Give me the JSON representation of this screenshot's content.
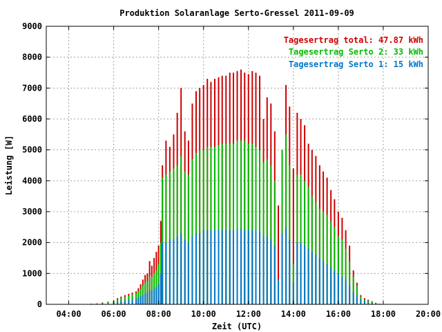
{
  "chart_data": {
    "type": "bar",
    "title": "Produktion Solaranlage Serto-Gressel 2011-09-09",
    "xlabel": "Zeit (UTC)",
    "ylabel": "Leistung [W]",
    "xlim": [
      3.0,
      20.0
    ],
    "ylim": [
      0,
      9000
    ],
    "x_ticks": [
      "04:00",
      "06:00",
      "08:00",
      "10:00",
      "12:00",
      "14:00",
      "16:00",
      "18:00",
      "20:00"
    ],
    "x_tick_hours": [
      4,
      6,
      8,
      10,
      12,
      14,
      16,
      18,
      20
    ],
    "y_ticks": [
      0,
      1000,
      2000,
      3000,
      4000,
      5000,
      6000,
      7000,
      8000,
      9000
    ],
    "grid": true,
    "legend_position": "top-right",
    "series": [
      {
        "name": "Tagesertrag total: 47.87 kWh",
        "color": "#cc0000",
        "points": [
          [
            5.0,
            20
          ],
          [
            5.25,
            30
          ],
          [
            5.5,
            60
          ],
          [
            5.75,
            90
          ],
          [
            6.0,
            120
          ],
          [
            6.17,
            200
          ],
          [
            6.33,
            250
          ],
          [
            6.5,
            300
          ],
          [
            6.67,
            340
          ],
          [
            6.83,
            380
          ],
          [
            7.0,
            420
          ],
          [
            7.1,
            520
          ],
          [
            7.2,
            650
          ],
          [
            7.3,
            800
          ],
          [
            7.4,
            950
          ],
          [
            7.5,
            1000
          ],
          [
            7.6,
            1400
          ],
          [
            7.7,
            1250
          ],
          [
            7.8,
            1500
          ],
          [
            7.9,
            1700
          ],
          [
            8.0,
            1900
          ],
          [
            8.1,
            2700
          ],
          [
            8.17,
            4500
          ],
          [
            8.33,
            5300
          ],
          [
            8.5,
            5100
          ],
          [
            8.67,
            5500
          ],
          [
            8.83,
            6200
          ],
          [
            9.0,
            7000
          ],
          [
            9.17,
            5600
          ],
          [
            9.33,
            5300
          ],
          [
            9.5,
            6500
          ],
          [
            9.67,
            6900
          ],
          [
            9.83,
            7000
          ],
          [
            10.0,
            7100
          ],
          [
            10.17,
            7300
          ],
          [
            10.33,
            7200
          ],
          [
            10.5,
            7300
          ],
          [
            10.67,
            7350
          ],
          [
            10.83,
            7400
          ],
          [
            11.0,
            7400
          ],
          [
            11.17,
            7500
          ],
          [
            11.33,
            7500
          ],
          [
            11.5,
            7550
          ],
          [
            11.67,
            7600
          ],
          [
            11.83,
            7500
          ],
          [
            12.0,
            7450
          ],
          [
            12.17,
            7550
          ],
          [
            12.33,
            7500
          ],
          [
            12.5,
            7400
          ],
          [
            12.67,
            6000
          ],
          [
            12.83,
            6700
          ],
          [
            13.0,
            6500
          ],
          [
            13.17,
            5600
          ],
          [
            13.33,
            3200
          ],
          [
            13.5,
            5000
          ],
          [
            13.67,
            7100
          ],
          [
            13.83,
            6400
          ],
          [
            14.0,
            4400
          ],
          [
            14.17,
            6200
          ],
          [
            14.33,
            6000
          ],
          [
            14.5,
            5800
          ],
          [
            14.67,
            5200
          ],
          [
            14.83,
            5000
          ],
          [
            15.0,
            4800
          ],
          [
            15.17,
            4500
          ],
          [
            15.33,
            4300
          ],
          [
            15.5,
            4100
          ],
          [
            15.67,
            3700
          ],
          [
            15.83,
            3400
          ],
          [
            16.0,
            3000
          ],
          [
            16.17,
            2800
          ],
          [
            16.33,
            2400
          ],
          [
            16.5,
            1900
          ],
          [
            16.67,
            1100
          ],
          [
            16.83,
            700
          ],
          [
            17.0,
            300
          ],
          [
            17.17,
            200
          ],
          [
            17.33,
            150
          ],
          [
            17.5,
            100
          ],
          [
            17.67,
            50
          ],
          [
            17.83,
            20
          ]
        ]
      },
      {
        "name": "Tagesertrag Serto 2: 33 kWh",
        "color": "#00bb00",
        "points": [
          [
            5.0,
            20
          ],
          [
            5.25,
            25
          ],
          [
            5.5,
            50
          ],
          [
            5.75,
            80
          ],
          [
            6.0,
            100
          ],
          [
            6.17,
            160
          ],
          [
            6.33,
            200
          ],
          [
            6.5,
            240
          ],
          [
            6.67,
            280
          ],
          [
            6.83,
            320
          ],
          [
            7.0,
            350
          ],
          [
            7.1,
            420
          ],
          [
            7.2,
            500
          ],
          [
            7.3,
            600
          ],
          [
            7.4,
            700
          ],
          [
            7.5,
            750
          ],
          [
            7.6,
            900
          ],
          [
            7.7,
            900
          ],
          [
            7.8,
            1000
          ],
          [
            7.9,
            1100
          ],
          [
            8.0,
            1300
          ],
          [
            8.1,
            2000
          ],
          [
            8.17,
            4100
          ],
          [
            8.33,
            4200
          ],
          [
            8.5,
            4300
          ],
          [
            8.67,
            4400
          ],
          [
            8.83,
            4500
          ],
          [
            9.0,
            4800
          ],
          [
            9.17,
            4300
          ],
          [
            9.33,
            4200
          ],
          [
            9.5,
            4700
          ],
          [
            9.67,
            4900
          ],
          [
            9.83,
            5000
          ],
          [
            10.0,
            5000
          ],
          [
            10.17,
            5100
          ],
          [
            10.33,
            5100
          ],
          [
            10.5,
            5100
          ],
          [
            10.67,
            5150
          ],
          [
            10.83,
            5200
          ],
          [
            11.0,
            5200
          ],
          [
            11.17,
            5200
          ],
          [
            11.33,
            5200
          ],
          [
            11.5,
            5300
          ],
          [
            11.67,
            5300
          ],
          [
            11.83,
            5300
          ],
          [
            12.0,
            5200
          ],
          [
            12.17,
            5200
          ],
          [
            12.33,
            5100
          ],
          [
            12.5,
            5000
          ],
          [
            12.67,
            4600
          ],
          [
            12.83,
            4700
          ],
          [
            13.0,
            4500
          ],
          [
            13.17,
            4000
          ],
          [
            13.33,
            800
          ],
          [
            13.5,
            5000
          ],
          [
            13.67,
            5500
          ],
          [
            13.83,
            4500
          ],
          [
            14.0,
            1300
          ],
          [
            14.17,
            4200
          ],
          [
            14.33,
            4200
          ],
          [
            14.5,
            4000
          ],
          [
            14.67,
            3800
          ],
          [
            14.83,
            3500
          ],
          [
            15.0,
            3300
          ],
          [
            15.17,
            3100
          ],
          [
            15.33,
            3000
          ],
          [
            15.5,
            2900
          ],
          [
            15.67,
            2700
          ],
          [
            15.83,
            2500
          ],
          [
            16.0,
            2200
          ],
          [
            16.17,
            2100
          ],
          [
            16.33,
            1800
          ],
          [
            16.5,
            1400
          ],
          [
            16.67,
            900
          ],
          [
            16.83,
            600
          ],
          [
            17.0,
            250
          ],
          [
            17.17,
            150
          ],
          [
            17.33,
            120
          ],
          [
            17.5,
            80
          ],
          [
            17.67,
            40
          ],
          [
            17.83,
            15
          ]
        ]
      },
      {
        "name": "Tagesertrag Serto 1: 15 kWh",
        "color": "#0077cc",
        "points": [
          [
            5.0,
            10
          ],
          [
            5.25,
            15
          ],
          [
            5.5,
            30
          ],
          [
            5.75,
            40
          ],
          [
            6.0,
            50
          ],
          [
            6.17,
            80
          ],
          [
            6.33,
            100
          ],
          [
            6.5,
            120
          ],
          [
            6.67,
            140
          ],
          [
            6.83,
            160
          ],
          [
            7.0,
            180
          ],
          [
            7.1,
            220
          ],
          [
            7.2,
            260
          ],
          [
            7.3,
            300
          ],
          [
            7.4,
            340
          ],
          [
            7.5,
            380
          ],
          [
            7.6,
            450
          ],
          [
            7.7,
            450
          ],
          [
            7.8,
            500
          ],
          [
            7.9,
            550
          ],
          [
            8.0,
            650
          ],
          [
            8.1,
            1000
          ],
          [
            8.17,
            2000
          ],
          [
            8.33,
            2000
          ],
          [
            8.5,
            2100
          ],
          [
            8.67,
            2100
          ],
          [
            8.83,
            2200
          ],
          [
            9.0,
            2300
          ],
          [
            9.17,
            2100
          ],
          [
            9.33,
            2000
          ],
          [
            9.5,
            2200
          ],
          [
            9.67,
            2300
          ],
          [
            9.83,
            2300
          ],
          [
            10.0,
            2400
          ],
          [
            10.17,
            2400
          ],
          [
            10.33,
            2400
          ],
          [
            10.5,
            2400
          ],
          [
            10.67,
            2400
          ],
          [
            10.83,
            2400
          ],
          [
            11.0,
            2400
          ],
          [
            11.17,
            2400
          ],
          [
            11.33,
            2400
          ],
          [
            11.5,
            2450
          ],
          [
            11.67,
            2450
          ],
          [
            11.83,
            2400
          ],
          [
            12.0,
            2400
          ],
          [
            12.17,
            2400
          ],
          [
            12.33,
            2400
          ],
          [
            12.5,
            2350
          ],
          [
            12.67,
            2200
          ],
          [
            12.83,
            2200
          ],
          [
            13.0,
            2100
          ],
          [
            13.17,
            1900
          ],
          [
            13.33,
            800
          ],
          [
            13.5,
            2300
          ],
          [
            13.67,
            2500
          ],
          [
            13.83,
            2100
          ],
          [
            14.0,
            700
          ],
          [
            14.17,
            2000
          ],
          [
            14.33,
            2000
          ],
          [
            14.5,
            1900
          ],
          [
            14.67,
            1800
          ],
          [
            14.83,
            1700
          ],
          [
            15.0,
            1600
          ],
          [
            15.17,
            1500
          ],
          [
            15.33,
            1400
          ],
          [
            15.5,
            1300
          ],
          [
            15.67,
            1200
          ],
          [
            15.83,
            1100
          ],
          [
            16.0,
            1000
          ],
          [
            16.17,
            900
          ],
          [
            16.33,
            800
          ],
          [
            16.5,
            600
          ],
          [
            16.67,
            400
          ],
          [
            16.83,
            300
          ],
          [
            17.0,
            150
          ],
          [
            17.17,
            100
          ],
          [
            17.33,
            60
          ],
          [
            17.5,
            40
          ],
          [
            17.67,
            20
          ],
          [
            17.83,
            10
          ]
        ]
      }
    ]
  }
}
